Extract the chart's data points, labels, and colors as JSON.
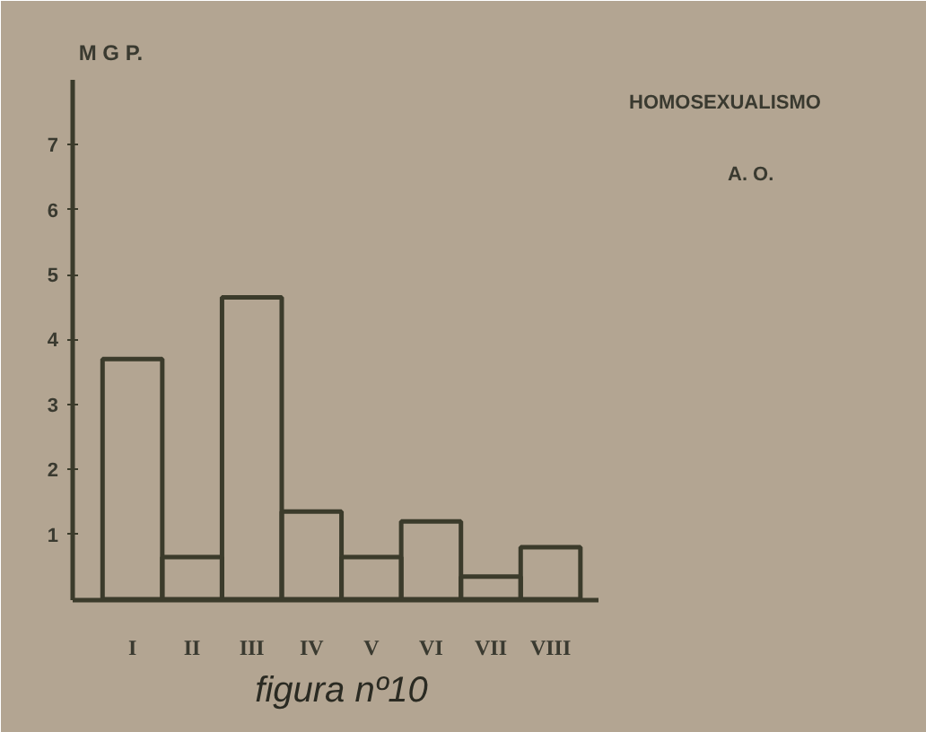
{
  "chart_data": {
    "type": "bar",
    "ylabel": "M G P.",
    "xlabel": "figura nº10",
    "annotations": [
      "HOMOSEXUALISMO",
      "A. O."
    ],
    "categories": [
      "I",
      "II",
      "III",
      "IV",
      "V",
      "VI",
      "VII",
      "VIII"
    ],
    "values": [
      3.7,
      0.65,
      4.65,
      1.35,
      0.65,
      1.2,
      0.35,
      0.8
    ],
    "color": "#3b3b2b",
    "ylim": [
      0,
      8
    ],
    "yticks": [
      1,
      2,
      3,
      4,
      5,
      6,
      7
    ],
    "grid": false
  }
}
